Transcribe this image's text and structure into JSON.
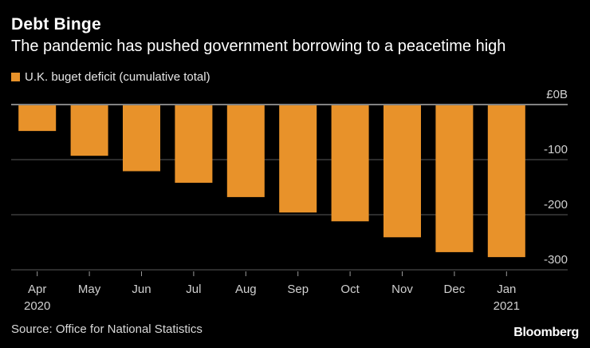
{
  "title": "Debt Binge",
  "subtitle": "The pandemic has pushed government borrowing to a peacetime high",
  "source": "Source: Office for National Statistics",
  "brand": "Bloomberg",
  "colors": {
    "background": "#000000",
    "bar": "#e8922a",
    "gridline": "#5a5a5a",
    "zero_line": "#d0d0d0",
    "text": "#ffffff"
  },
  "chart_data": {
    "type": "bar",
    "title": "Debt Binge",
    "subtitle": "The pandemic has pushed government borrowing to a peacetime high",
    "legend": [
      "U.K. buget deficit (cumulative total)"
    ],
    "categories": [
      "Apr",
      "May",
      "Jun",
      "Jul",
      "Aug",
      "Sep",
      "Oct",
      "Nov",
      "Dec",
      "Jan"
    ],
    "year_labels": [
      {
        "category": "Apr",
        "label": "2020"
      },
      {
        "category": "Jan",
        "label": "2021"
      }
    ],
    "series": [
      {
        "name": "U.K. buget deficit (cumulative total)",
        "values": [
          -48,
          -93,
          -121,
          -142,
          -168,
          -196,
          -212,
          -241,
          -268,
          -277
        ]
      }
    ],
    "ylim": [
      -310,
      0
    ],
    "y_ticks": [
      {
        "value": 0,
        "label": "£0B"
      },
      {
        "value": -100,
        "label": "-100"
      },
      {
        "value": -200,
        "label": "-200"
      },
      {
        "value": -300,
        "label": "-300"
      }
    ],
    "xlabel": "",
    "ylabel": "",
    "axis_position": "right",
    "grid": true
  }
}
